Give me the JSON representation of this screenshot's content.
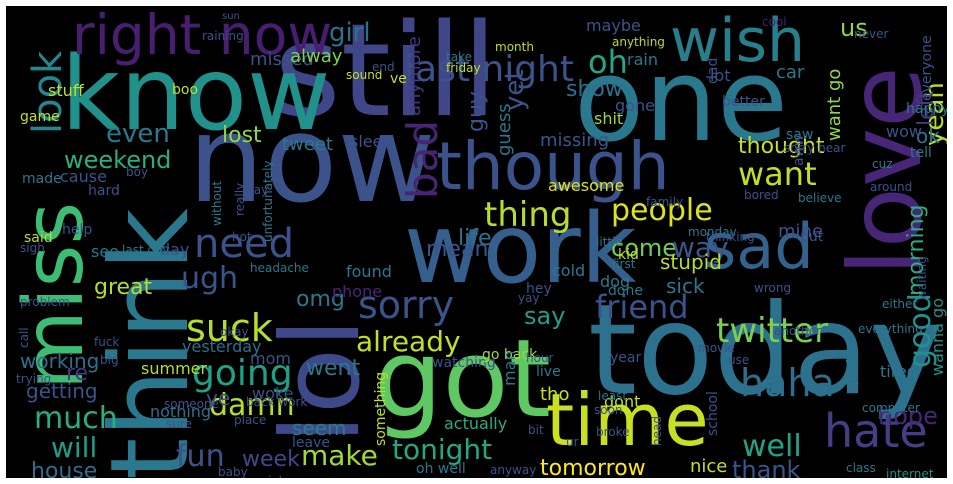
{
  "words": [
    {
      "text": "still",
      "color": "#3f4788"
    },
    {
      "text": "one",
      "color": "#2a788e"
    },
    {
      "text": "know",
      "color": "#21918c"
    },
    {
      "text": "now",
      "color": "#3b528b"
    },
    {
      "text": "got",
      "color": "#5ec962"
    },
    {
      "text": "today",
      "color": "#2c718e"
    },
    {
      "text": "work",
      "color": "#355f8d"
    },
    {
      "text": "lol",
      "color": "#3e4989"
    },
    {
      "text": "think",
      "color": "#2a788e"
    },
    {
      "text": "love",
      "color": "#482677"
    },
    {
      "text": "miss",
      "color": "#3dbc74"
    },
    {
      "text": "time",
      "color": "#c8e020"
    },
    {
      "text": "though",
      "color": "#3b528b"
    },
    {
      "text": "wish",
      "color": "#277f8e"
    },
    {
      "text": "sad",
      "color": "#33638d"
    },
    {
      "text": "right now",
      "color": "#481f70"
    },
    {
      "text": "hate",
      "color": "#433e85"
    },
    {
      "text": "last night",
      "color": "#3b528b"
    },
    {
      "text": "sorry",
      "color": "#3b528b"
    },
    {
      "text": "need",
      "color": "#3b528b"
    },
    {
      "text": "bad",
      "color": "#482475"
    },
    {
      "text": "twitter",
      "color": "#7ad151"
    },
    {
      "text": "haha",
      "color": "#2d708e"
    },
    {
      "text": "going",
      "color": "#1fa187"
    },
    {
      "text": "friend",
      "color": "#3b528b"
    },
    {
      "text": "suck",
      "color": "#b5de2b"
    },
    {
      "text": "look",
      "color": "#24868e"
    },
    {
      "text": "want",
      "color": "#c2df23"
    },
    {
      "text": "thing",
      "color": "#b5de2b"
    },
    {
      "text": "people",
      "color": "#dde318"
    },
    {
      "text": "already",
      "color": "#c2df23"
    },
    {
      "text": "damn",
      "color": "#b5de2b"
    },
    {
      "text": "make",
      "color": "#9fda3a"
    },
    {
      "text": "tonight",
      "color": "#22a884"
    },
    {
      "text": "much",
      "color": "#29af7f"
    },
    {
      "text": "well",
      "color": "#20a386"
    },
    {
      "text": "will",
      "color": "#1f9e89"
    },
    {
      "text": "fun",
      "color": "#3b528b"
    },
    {
      "text": "good",
      "color": "#21918c"
    },
    {
      "text": "morning",
      "color": "#29af7f"
    },
    {
      "text": "hope",
      "color": "#482677"
    },
    {
      "text": "thank",
      "color": "#39568c"
    },
    {
      "text": "tomorrow",
      "color": "#fde725"
    },
    {
      "text": "house",
      "color": "#2e6e8e"
    },
    {
      "text": "week",
      "color": "#3e4989"
    },
    {
      "text": "ugh",
      "color": "#39568c"
    },
    {
      "text": "even",
      "color": "#2a788e"
    },
    {
      "text": "weekend",
      "color": "#29af7f"
    },
    {
      "text": "lost",
      "color": "#8fd744"
    },
    {
      "text": "thought",
      "color": "#c8e020"
    },
    {
      "text": "come",
      "color": "#6ece58"
    },
    {
      "text": "way",
      "color": "#39568c"
    },
    {
      "text": "girl",
      "color": "#2d708e"
    },
    {
      "text": "oh",
      "color": "#22a884"
    },
    {
      "text": "yet",
      "color": "#3b528b"
    },
    {
      "text": "yeah",
      "color": "#b5de2b"
    },
    {
      "text": "left",
      "color": "#453781"
    },
    {
      "text": "ok",
      "color": "#2a788e"
    },
    {
      "text": "us",
      "color": "#8fd744"
    },
    {
      "text": "show",
      "color": "#2d708e"
    },
    {
      "text": "mean",
      "color": "#3b528b"
    },
    {
      "text": "life",
      "color": "#2c718e"
    },
    {
      "text": "great",
      "color": "#b5de2b"
    },
    {
      "text": "sick",
      "color": "#2a788e"
    },
    {
      "text": "say",
      "color": "#1f9e89"
    },
    {
      "text": "omg",
      "color": "#2a788e"
    },
    {
      "text": "working",
      "color": "#2d708e"
    },
    {
      "text": "re",
      "color": "#443983"
    },
    {
      "text": "went",
      "color": "#2a788e"
    },
    {
      "text": "getting",
      "color": "#3b528b"
    },
    {
      "text": "ye",
      "color": "#3b528b"
    },
    {
      "text": "seem",
      "color": "#287c8e"
    },
    {
      "text": "guy",
      "color": "#3b528b"
    },
    {
      "text": "guess",
      "color": "#2a788e"
    },
    {
      "text": "missed",
      "color": "#3b528b"
    },
    {
      "text": "alway",
      "color": "#7ad151"
    },
    {
      "text": "tweet",
      "color": "#2a788e"
    },
    {
      "text": "sleep",
      "color": "#3b528b"
    },
    {
      "text": "missing",
      "color": "#39568c"
    },
    {
      "text": "anymore",
      "color": "#453781"
    },
    {
      "text": "shit",
      "color": "#9fda3a"
    },
    {
      "text": "gone",
      "color": "#3b528b"
    },
    {
      "text": "stupid",
      "color": "#b5de2b"
    },
    {
      "text": "mine",
      "color": "#3b528b"
    },
    {
      "text": "want go",
      "color": "#8fd744"
    },
    {
      "text": "maybe",
      "color": "#3b528b"
    },
    {
      "text": "lot",
      "color": "#3b528b"
    },
    {
      "text": "cool",
      "color": "#481f70"
    },
    {
      "text": "car",
      "color": "#2a788e"
    },
    {
      "text": "rain",
      "color": "#2a788e"
    },
    {
      "text": "yesterday",
      "color": "#2d708e"
    },
    {
      "text": "summer",
      "color": "#b5de2b"
    },
    {
      "text": "nothing",
      "color": "#2d708e"
    },
    {
      "text": "woke",
      "color": "#3b528b"
    },
    {
      "text": "mom",
      "color": "#3b528b"
    },
    {
      "text": "found",
      "color": "#2a788e"
    },
    {
      "text": "phone",
      "color": "#482677"
    },
    {
      "text": "hey",
      "color": "#3b528b"
    },
    {
      "text": "cold",
      "color": "#2a788e"
    },
    {
      "text": "dog",
      "color": "#2a788e"
    },
    {
      "text": "kid",
      "color": "#c2df23"
    },
    {
      "text": "awesome",
      "color": "#dde318"
    },
    {
      "text": "watching",
      "color": "#3b528b"
    },
    {
      "text": "go back",
      "color": "#9fda3a"
    },
    {
      "text": "man",
      "color": "#2a788e"
    },
    {
      "text": "tho",
      "color": "#c2df23"
    },
    {
      "text": "live",
      "color": "#2a788e"
    },
    {
      "text": "year",
      "color": "#3b528b"
    },
    {
      "text": "dont",
      "color": "#c2df23"
    },
    {
      "text": "actually",
      "color": "#29af7f"
    },
    {
      "text": "school",
      "color": "#3b528b"
    },
    {
      "text": "nice",
      "color": "#c2df23"
    },
    {
      "text": "leave",
      "color": "#3b528b"
    },
    {
      "text": "oh well",
      "color": "#2a788e"
    },
    {
      "text": "something",
      "color": "#c2df23"
    },
    {
      "text": "tired",
      "color": "#2a788e"
    },
    {
      "text": "wanna go",
      "color": "#21918c"
    },
    {
      "text": "poor",
      "color": "#2a788e"
    },
    {
      "text": "day",
      "color": "#3b528b"
    },
    {
      "text": "see",
      "color": "#2a788e"
    },
    {
      "text": "said",
      "color": "#b5de2b"
    },
    {
      "text": "help",
      "color": "#3b528b"
    },
    {
      "text": "made",
      "color": "#2a788e"
    },
    {
      "text": "cause",
      "color": "#3b528b"
    },
    {
      "text": "last day",
      "color": "#2a788e"
    },
    {
      "text": "hard",
      "color": "#3b528b"
    },
    {
      "text": "boy",
      "color": "#3b528b"
    },
    {
      "text": "stuff",
      "color": "#c2df23"
    },
    {
      "text": "boo",
      "color": "#c2df23"
    },
    {
      "text": "game",
      "color": "#c2df23"
    },
    {
      "text": "sound",
      "color": "#c2df23"
    },
    {
      "text": "ve",
      "color": "#c2df23"
    },
    {
      "text": "end",
      "color": "#3b528b"
    },
    {
      "text": "month",
      "color": "#c2df23"
    },
    {
      "text": "friday",
      "color": "#c2df23"
    },
    {
      "text": "take",
      "color": "#2a788e"
    },
    {
      "text": "anything",
      "color": "#b5de2b"
    },
    {
      "text": "better",
      "color": "#3b528b"
    },
    {
      "text": "dad",
      "color": "#3b528b"
    },
    {
      "text": "never",
      "color": "#3b528b"
    },
    {
      "text": "everyone",
      "color": "#3b528b"
    },
    {
      "text": "wow",
      "color": "#3b528b"
    },
    {
      "text": "happy",
      "color": "#2a788e"
    },
    {
      "text": "saw",
      "color": "#2a788e"
    },
    {
      "text": "sorry hear",
      "color": "#3b528b"
    },
    {
      "text": "tell",
      "color": "#2a788e"
    },
    {
      "text": "aww",
      "color": "#3b528b"
    },
    {
      "text": "believe",
      "color": "#2a788e"
    },
    {
      "text": "around",
      "color": "#3b528b"
    },
    {
      "text": "bored",
      "color": "#3b528b"
    },
    {
      "text": "family",
      "color": "#3b528b"
    },
    {
      "text": "monday",
      "color": "#2a788e"
    },
    {
      "text": "thinking",
      "color": "#3b528b"
    },
    {
      "text": "put",
      "color": "#3b528b"
    },
    {
      "text": "either",
      "color": "#2a788e"
    },
    {
      "text": "waiting",
      "color": "#3b528b"
    },
    {
      "text": "first",
      "color": "#2a788e"
    },
    {
      "text": "done",
      "color": "#2a788e"
    },
    {
      "text": "wrong",
      "color": "#3b528b"
    },
    {
      "text": "little",
      "color": "#2a788e"
    },
    {
      "text": "another",
      "color": "#3b528b"
    },
    {
      "text": "everything",
      "color": "#2a788e"
    },
    {
      "text": "computer",
      "color": "#2a788e"
    },
    {
      "text": "class",
      "color": "#2a788e"
    },
    {
      "text": "internet",
      "color": "#21918c"
    },
    {
      "text": "movie",
      "color": "#3b528b"
    },
    {
      "text": "use",
      "color": "#3b528b"
    },
    {
      "text": "soon",
      "color": "#3b528b"
    },
    {
      "text": "broke",
      "color": "#3b528b"
    },
    {
      "text": "anyway",
      "color": "#3b528b"
    },
    {
      "text": "bit",
      "color": "#3b528b"
    },
    {
      "text": "ur",
      "color": "#3b528b"
    },
    {
      "text": "job",
      "color": "#3b528b"
    },
    {
      "text": "place",
      "color": "#3b528b"
    },
    {
      "text": "back work",
      "color": "#3b528b"
    },
    {
      "text": "baby",
      "color": "#3b528b"
    },
    {
      "text": "must",
      "color": "#2a788e"
    },
    {
      "text": "sure",
      "color": "#3b528b"
    },
    {
      "text": "someone",
      "color": "#3b528b"
    },
    {
      "text": "okay",
      "color": "#3b528b"
    },
    {
      "text": "fuck",
      "color": "#3b528b"
    },
    {
      "text": "big",
      "color": "#3b528b"
    },
    {
      "text": "call",
      "color": "#3b528b"
    },
    {
      "text": "problem",
      "color": "#3b528b"
    },
    {
      "text": "trying",
      "color": "#3b528b"
    },
    {
      "text": "headache",
      "color": "#2a788e"
    },
    {
      "text": "hot",
      "color": "#3b528b"
    },
    {
      "text": "really",
      "color": "#3b528b"
    },
    {
      "text": "unfortunately",
      "color": "#2a788e"
    },
    {
      "text": "without",
      "color": "#2a788e"
    },
    {
      "text": "may",
      "color": "#3b528b"
    },
    {
      "text": "hour",
      "color": "#3b528b"
    },
    {
      "text": "yay",
      "color": "#3b528b"
    },
    {
      "text": "head",
      "color": "#3b528b"
    },
    {
      "text": "least",
      "color": "#2a788e"
    },
    {
      "text": "cuz",
      "color": "#2a788e"
    },
    {
      "text": "raining",
      "color": "#3b528b"
    },
    {
      "text": "sun",
      "color": "#3b528b"
    },
    {
      "text": "sigh",
      "color": "#3b528b"
    }
  ]
}
